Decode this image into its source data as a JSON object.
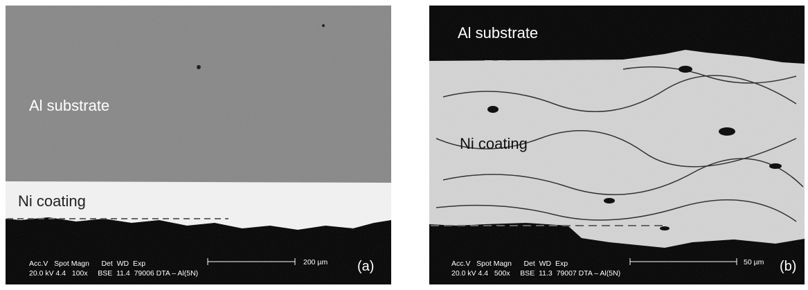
{
  "panels": [
    {
      "substrate_label": "Al substrate",
      "coating_label": "Ni coating",
      "info_header": "Acc.V   Spot Magn      Det  WD  Exp",
      "info_values": "20.0 kV 4.4   100x     BSE  11.4  79006 DTA – Al(5N)",
      "scale_label": "200 µm",
      "panel_label": "(a)"
    },
    {
      "substrate_label": "Al substrate",
      "coating_label": "Ni coating",
      "info_header": "Acc.V   Spot Magn      Det  WD  Exp",
      "info_values": "20.0 kV 4.4   500x     BSE  11.3  79007 DTA – Al(5N)",
      "scale_label": "50 µm",
      "panel_label": "(b)"
    }
  ]
}
